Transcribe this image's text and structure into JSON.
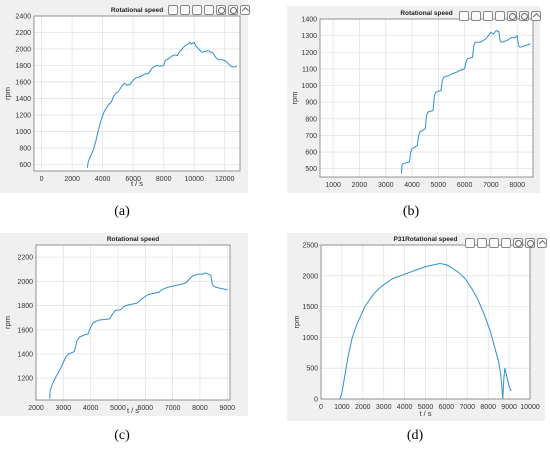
{
  "figure": {
    "captions": [
      "(a)",
      "(b)",
      "(c)",
      "(d)"
    ],
    "toolbar_icons": [
      "brush-icon",
      "data-cursor-icon",
      "rotate-icon",
      "pan-icon",
      "zoom-in-icon",
      "zoom-out-icon",
      "home-icon"
    ]
  },
  "chart_data": [
    {
      "type": "line",
      "title": "Rotational speed",
      "xlabel": "t / s",
      "ylabel": "rpm",
      "xlim": [
        -500,
        13000
      ],
      "ylim": [
        520,
        2400
      ],
      "xticks": [
        0,
        2000,
        4000,
        6000,
        8000,
        10000,
        12000
      ],
      "yticks": [
        600,
        800,
        1000,
        1200,
        1400,
        1600,
        1800,
        2000,
        2200,
        2400
      ],
      "grid": true,
      "color": "#2f8fd0",
      "series": [
        {
          "values": [
            [
              3000,
              560
            ],
            [
              3050,
              630
            ],
            [
              3200,
              700
            ],
            [
              3400,
              780
            ],
            [
              3550,
              880
            ],
            [
              3700,
              1000
            ],
            [
              3900,
              1140
            ],
            [
              4100,
              1240
            ],
            [
              4300,
              1300
            ],
            [
              4400,
              1330
            ],
            [
              4550,
              1350
            ],
            [
              4700,
              1420
            ],
            [
              4850,
              1460
            ],
            [
              5000,
              1480
            ],
            [
              5150,
              1520
            ],
            [
              5300,
              1560
            ],
            [
              5400,
              1580
            ],
            [
              5500,
              1580
            ],
            [
              5600,
              1560
            ],
            [
              5800,
              1570
            ],
            [
              6000,
              1620
            ],
            [
              6200,
              1650
            ],
            [
              6400,
              1660
            ],
            [
              6600,
              1680
            ],
            [
              6800,
              1700
            ],
            [
              7000,
              1700
            ],
            [
              7200,
              1760
            ],
            [
              7400,
              1790
            ],
            [
              7600,
              1800
            ],
            [
              7800,
              1790
            ],
            [
              8000,
              1800
            ],
            [
              8100,
              1860
            ],
            [
              8300,
              1880
            ],
            [
              8500,
              1910
            ],
            [
              8700,
              1930
            ],
            [
              8900,
              1920
            ],
            [
              9000,
              1960
            ],
            [
              9200,
              2000
            ],
            [
              9400,
              2040
            ],
            [
              9600,
              2060
            ],
            [
              9700,
              2080
            ],
            [
              9800,
              2060
            ],
            [
              10000,
              2080
            ],
            [
              10100,
              2040
            ],
            [
              10300,
              2000
            ],
            [
              10500,
              1960
            ],
            [
              10700,
              1970
            ],
            [
              10900,
              1980
            ],
            [
              11100,
              1960
            ],
            [
              11200,
              1960
            ],
            [
              11400,
              1900
            ],
            [
              11600,
              1870
            ],
            [
              11800,
              1870
            ],
            [
              12000,
              1860
            ],
            [
              12200,
              1830
            ],
            [
              12400,
              1790
            ],
            [
              12600,
              1780
            ],
            [
              12800,
              1790
            ]
          ]
        }
      ]
    },
    {
      "type": "line",
      "title": "Rotational speed",
      "xlabel": "",
      "ylabel": "rpm",
      "xlim": [
        500,
        8600
      ],
      "ylim": [
        450,
        1400
      ],
      "xticks": [
        1000,
        2000,
        3000,
        4000,
        5000,
        6000,
        7000,
        8000
      ],
      "yticks": [
        500,
        600,
        700,
        800,
        900,
        1000,
        1100,
        1200,
        1300,
        1400
      ],
      "grid": true,
      "color": "#2f8fd0",
      "series": [
        {
          "values": [
            [
              3600,
              470
            ],
            [
              3620,
              520
            ],
            [
              3650,
              530
            ],
            [
              3900,
              540
            ],
            [
              3950,
              600
            ],
            [
              4000,
              620
            ],
            [
              4200,
              640
            ],
            [
              4250,
              700
            ],
            [
              4300,
              720
            ],
            [
              4500,
              740
            ],
            [
              4550,
              820
            ],
            [
              4600,
              840
            ],
            [
              4800,
              850
            ],
            [
              4850,
              940
            ],
            [
              4900,
              960
            ],
            [
              5100,
              970
            ],
            [
              5150,
              1030
            ],
            [
              5200,
              1050
            ],
            [
              5400,
              1060
            ],
            [
              5500,
              1070
            ],
            [
              5700,
              1080
            ],
            [
              5800,
              1090
            ],
            [
              6000,
              1100
            ],
            [
              6050,
              1140
            ],
            [
              6100,
              1160
            ],
            [
              6300,
              1170
            ],
            [
              6350,
              1240
            ],
            [
              6400,
              1260
            ],
            [
              6600,
              1260
            ],
            [
              6700,
              1270
            ],
            [
              6800,
              1280
            ],
            [
              6900,
              1300
            ],
            [
              7000,
              1320
            ],
            [
              7100,
              1310
            ],
            [
              7200,
              1330
            ],
            [
              7300,
              1325
            ],
            [
              7350,
              1270
            ],
            [
              7400,
              1260
            ],
            [
              7600,
              1270
            ],
            [
              7700,
              1280
            ],
            [
              7800,
              1290
            ],
            [
              7900,
              1285
            ],
            [
              8000,
              1300
            ],
            [
              8050,
              1240
            ],
            [
              8100,
              1230
            ],
            [
              8300,
              1240
            ],
            [
              8500,
              1250
            ]
          ]
        }
      ]
    },
    {
      "type": "line",
      "title": "Rotational speed",
      "xlabel": "t / s",
      "ylabel": "rpm",
      "xlim": [
        2000,
        9100
      ],
      "ylim": [
        1020,
        2300
      ],
      "xticks": [
        2000,
        3000,
        4000,
        5000,
        6000,
        7000,
        8000,
        9000
      ],
      "yticks": [
        1200,
        1400,
        1600,
        1800,
        2000,
        2200
      ],
      "grid": true,
      "color": "#2f8fd0",
      "series": [
        {
          "values": [
            [
              2500,
              1030
            ],
            [
              2520,
              1100
            ],
            [
              2600,
              1150
            ],
            [
              2700,
              1200
            ],
            [
              2800,
              1240
            ],
            [
              2900,
              1280
            ],
            [
              3000,
              1330
            ],
            [
              3100,
              1380
            ],
            [
              3200,
              1400
            ],
            [
              3400,
              1420
            ],
            [
              3500,
              1510
            ],
            [
              3600,
              1540
            ],
            [
              3800,
              1560
            ],
            [
              3900,
              1565
            ],
            [
              4000,
              1620
            ],
            [
              4100,
              1660
            ],
            [
              4300,
              1680
            ],
            [
              4500,
              1685
            ],
            [
              4700,
              1690
            ],
            [
              4800,
              1730
            ],
            [
              4900,
              1760
            ],
            [
              5100,
              1765
            ],
            [
              5200,
              1790
            ],
            [
              5300,
              1800
            ],
            [
              5500,
              1810
            ],
            [
              5700,
              1820
            ],
            [
              5900,
              1860
            ],
            [
              6100,
              1890
            ],
            [
              6300,
              1900
            ],
            [
              6500,
              1910
            ],
            [
              6600,
              1930
            ],
            [
              6800,
              1950
            ],
            [
              7000,
              1960
            ],
            [
              7200,
              1970
            ],
            [
              7400,
              1980
            ],
            [
              7500,
              1990
            ],
            [
              7700,
              2040
            ],
            [
              7900,
              2060
            ],
            [
              8100,
              2060
            ],
            [
              8200,
              2070
            ],
            [
              8300,
              2060
            ],
            [
              8400,
              2050
            ],
            [
              8450,
              1980
            ],
            [
              8500,
              1960
            ],
            [
              8600,
              1950
            ],
            [
              8800,
              1940
            ],
            [
              9000,
              1930
            ]
          ]
        }
      ]
    },
    {
      "type": "line",
      "title": "P31Rotational speed",
      "xlabel": "t / s",
      "ylabel": "rpm",
      "xlim": [
        0,
        10000
      ],
      "ylim": [
        0,
        2500
      ],
      "xticks": [
        0,
        1000,
        2000,
        3000,
        4000,
        5000,
        6000,
        7000,
        8000,
        9000,
        10000
      ],
      "yticks": [
        0,
        500,
        1000,
        1500,
        2000,
        2500
      ],
      "grid": true,
      "color": "#2f8fd0",
      "series": [
        {
          "values": [
            [
              900,
              0
            ],
            [
              1000,
              100
            ],
            [
              1100,
              300
            ],
            [
              1200,
              500
            ],
            [
              1300,
              700
            ],
            [
              1500,
              1000
            ],
            [
              1700,
              1200
            ],
            [
              1900,
              1350
            ],
            [
              2100,
              1500
            ],
            [
              2300,
              1600
            ],
            [
              2500,
              1700
            ],
            [
              2800,
              1800
            ],
            [
              3100,
              1880
            ],
            [
              3400,
              1950
            ],
            [
              3800,
              2000
            ],
            [
              4200,
              2050
            ],
            [
              4600,
              2100
            ],
            [
              5000,
              2150
            ],
            [
              5400,
              2180
            ],
            [
              5700,
              2200
            ],
            [
              6000,
              2180
            ],
            [
              6300,
              2120
            ],
            [
              6600,
              2050
            ],
            [
              6900,
              1950
            ],
            [
              7200,
              1800
            ],
            [
              7500,
              1620
            ],
            [
              7800,
              1380
            ],
            [
              8100,
              1100
            ],
            [
              8300,
              850
            ],
            [
              8500,
              600
            ],
            [
              8600,
              400
            ],
            [
              8650,
              200
            ],
            [
              8700,
              0
            ],
            [
              8750,
              350
            ],
            [
              8800,
              500
            ],
            [
              8900,
              350
            ],
            [
              9000,
              200
            ],
            [
              9100,
              130
            ]
          ]
        }
      ]
    }
  ]
}
